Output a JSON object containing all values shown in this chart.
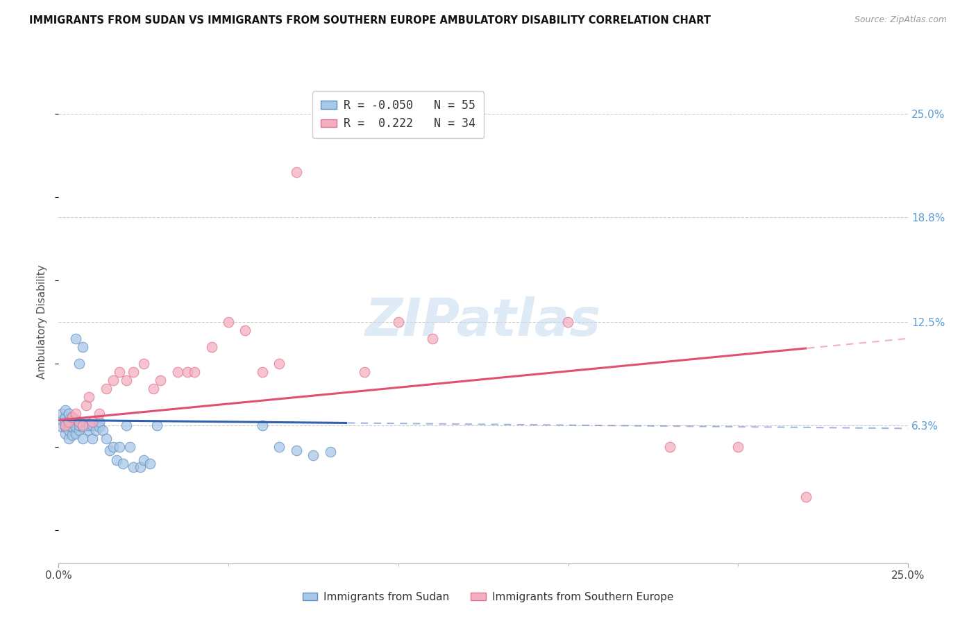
{
  "title": "IMMIGRANTS FROM SUDAN VS IMMIGRANTS FROM SOUTHERN EUROPE AMBULATORY DISABILITY CORRELATION CHART",
  "source": "Source: ZipAtlas.com",
  "ylabel": "Ambulatory Disability",
  "xlim": [
    0.0,
    0.25
  ],
  "ylim": [
    -0.02,
    0.27
  ],
  "ytick_labels": [
    "6.3%",
    "12.5%",
    "18.8%",
    "25.0%"
  ],
  "ytick_positions": [
    0.063,
    0.125,
    0.188,
    0.25
  ],
  "right_tick_color": "#5B9BD5",
  "series1_color": "#A8C8E8",
  "series2_color": "#F4B0C0",
  "series1_edge": "#6090C0",
  "series2_edge": "#E07090",
  "series1_R": -0.05,
  "series1_N": 55,
  "series2_R": 0.222,
  "series2_N": 34,
  "trend1_x0": 0.0,
  "trend1_y0": 0.066,
  "trend1_x1": 0.25,
  "trend1_y1": 0.061,
  "trend2_x0": 0.0,
  "trend2_y0": 0.066,
  "trend2_x1": 0.25,
  "trend2_y1": 0.115,
  "trend1_solid_end": 0.085,
  "trend2_solid_end": 0.22,
  "trend1_color": "#3060B0",
  "trend2_color": "#E05070",
  "grid_color": "#cccccc",
  "watermark_color": "#C8DCF0",
  "sudan_x": [
    0.001,
    0.001,
    0.001,
    0.002,
    0.002,
    0.002,
    0.002,
    0.002,
    0.003,
    0.003,
    0.003,
    0.003,
    0.003,
    0.004,
    0.004,
    0.004,
    0.004,
    0.005,
    0.005,
    0.005,
    0.005,
    0.006,
    0.006,
    0.006,
    0.007,
    0.007,
    0.007,
    0.008,
    0.008,
    0.009,
    0.009,
    0.01,
    0.01,
    0.011,
    0.012,
    0.012,
    0.013,
    0.014,
    0.015,
    0.016,
    0.017,
    0.018,
    0.019,
    0.02,
    0.021,
    0.022,
    0.024,
    0.025,
    0.027,
    0.029,
    0.06,
    0.065,
    0.07,
    0.075,
    0.08
  ],
  "sudan_y": [
    0.062,
    0.066,
    0.07,
    0.058,
    0.062,
    0.065,
    0.068,
    0.072,
    0.055,
    0.06,
    0.063,
    0.066,
    0.07,
    0.057,
    0.062,
    0.065,
    0.068,
    0.058,
    0.062,
    0.066,
    0.115,
    0.06,
    0.063,
    0.1,
    0.055,
    0.062,
    0.11,
    0.063,
    0.065,
    0.06,
    0.063,
    0.055,
    0.063,
    0.06,
    0.062,
    0.065,
    0.06,
    0.055,
    0.048,
    0.05,
    0.042,
    0.05,
    0.04,
    0.063,
    0.05,
    0.038,
    0.038,
    0.042,
    0.04,
    0.063,
    0.063,
    0.05,
    0.048,
    0.045,
    0.047
  ],
  "seurope_x": [
    0.002,
    0.003,
    0.004,
    0.005,
    0.006,
    0.007,
    0.008,
    0.009,
    0.01,
    0.012,
    0.014,
    0.016,
    0.018,
    0.02,
    0.022,
    0.025,
    0.028,
    0.03,
    0.035,
    0.038,
    0.04,
    0.045,
    0.05,
    0.055,
    0.06,
    0.065,
    0.07,
    0.09,
    0.1,
    0.11,
    0.15,
    0.18,
    0.2,
    0.22
  ],
  "seurope_y": [
    0.063,
    0.065,
    0.068,
    0.07,
    0.065,
    0.063,
    0.075,
    0.08,
    0.065,
    0.07,
    0.085,
    0.09,
    0.095,
    0.09,
    0.095,
    0.1,
    0.085,
    0.09,
    0.095,
    0.095,
    0.095,
    0.11,
    0.125,
    0.12,
    0.095,
    0.1,
    0.215,
    0.095,
    0.125,
    0.115,
    0.125,
    0.05,
    0.05,
    0.02
  ]
}
